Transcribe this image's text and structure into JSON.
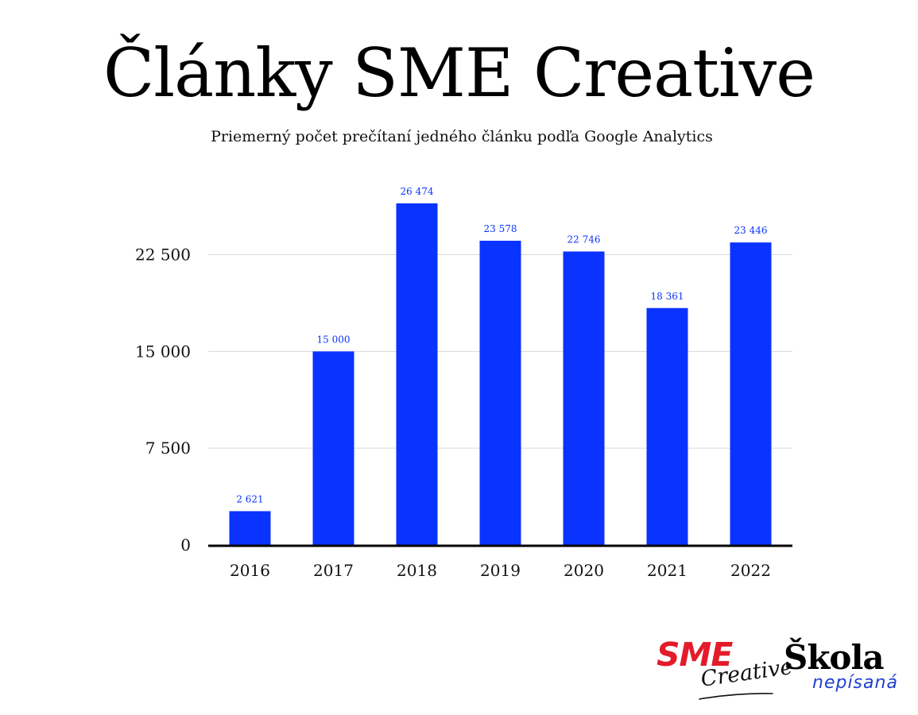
{
  "chart_data": {
    "type": "bar",
    "title": "Články SME Creative",
    "subtitle": "Priemerný počet prečítaní jedného článku podľa Google Analytics",
    "categories": [
      "2016",
      "2017",
      "2018",
      "2019",
      "2020",
      "2021",
      "2022"
    ],
    "values": [
      2621,
      15000,
      26474,
      23578,
      22746,
      18361,
      23446
    ],
    "value_labels": [
      "2 621",
      "15 000",
      "26 474",
      "23 578",
      "22 746",
      "18 361",
      "23 446"
    ],
    "y_ticks": [
      0,
      7500,
      15000,
      22500
    ],
    "y_tick_labels": [
      "0",
      "7 500",
      "15 000",
      "22 500"
    ],
    "ylim": [
      0,
      26474
    ],
    "xlabel": "",
    "ylabel": "",
    "grid": true,
    "legend": "none",
    "bar_color": "#0a33ff",
    "label_color": "#0a33ff"
  },
  "logos": {
    "sme": "SME",
    "creative": "Creative",
    "skola": "Škola",
    "nepisana": "nepísaná"
  },
  "colors": {
    "sme_red": "#e31b2a",
    "nepisana_blue": "#1f3fd1"
  }
}
